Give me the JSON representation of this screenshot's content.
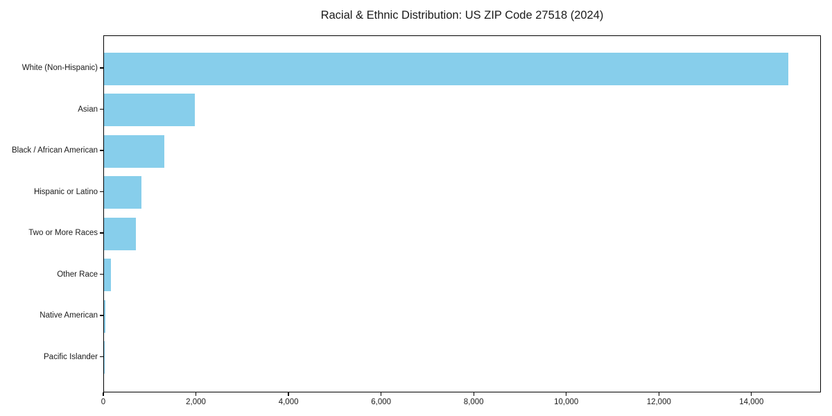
{
  "chart_data": {
    "type": "bar",
    "orientation": "horizontal",
    "title": "Racial & Ethnic Distribution: US ZIP Code 27518 (2024)",
    "categories": [
      "White (Non-Hispanic)",
      "Asian",
      "Black / African American",
      "Hispanic or Latino",
      "Two or More Races",
      "Other Race",
      "Native American",
      "Pacific Islander"
    ],
    "values": [
      14775,
      1960,
      1300,
      810,
      690,
      145,
      25,
      8
    ],
    "xlabel": "",
    "ylabel": "",
    "xlim": [
      0,
      15500
    ],
    "xticks": [
      0,
      2000,
      4000,
      6000,
      8000,
      10000,
      12000,
      14000
    ],
    "xtick_labels": [
      "0",
      "2,000",
      "4,000",
      "6,000",
      "8,000",
      "10,000",
      "12,000",
      "14,000"
    ],
    "bar_color": "#87CEEB",
    "grid": false,
    "legend": null
  }
}
